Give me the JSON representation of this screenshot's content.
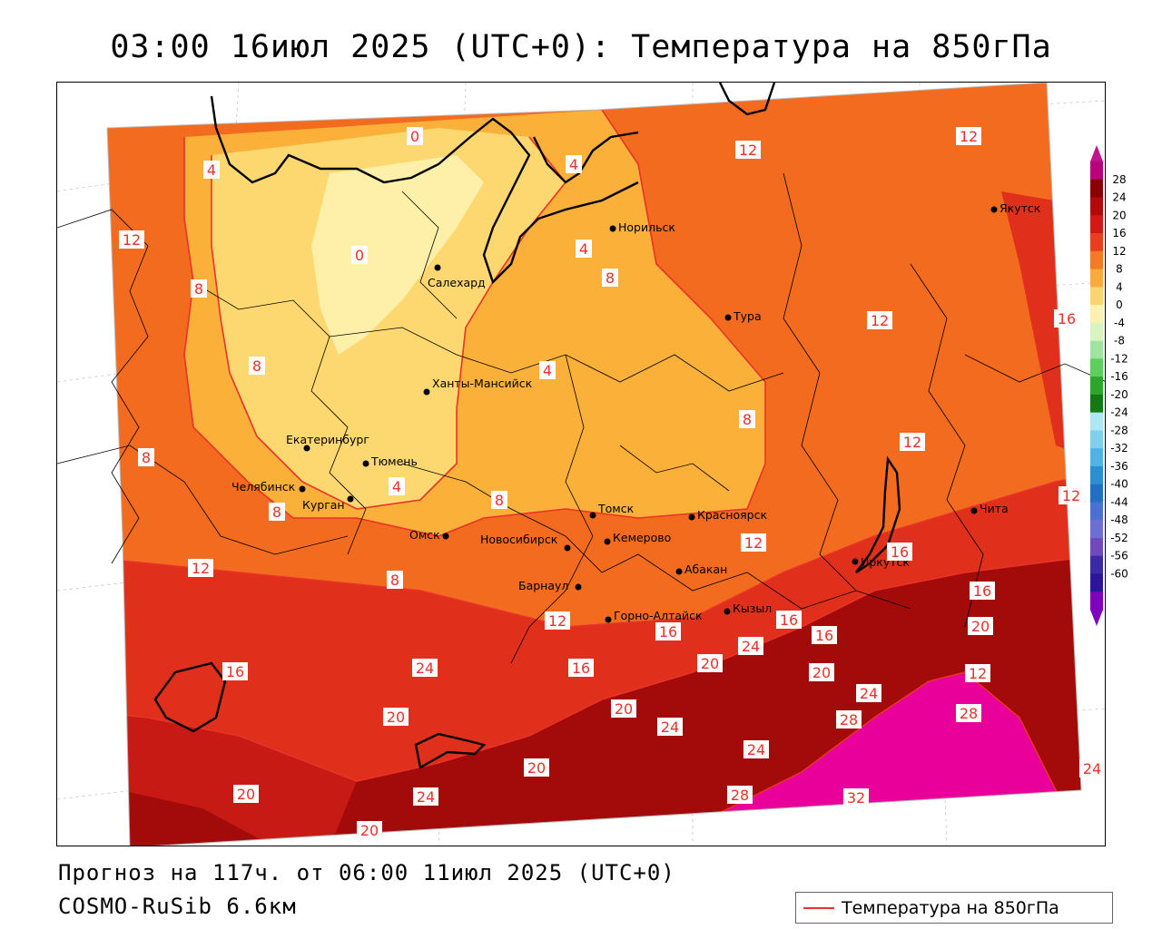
{
  "title": "03:00 16июл 2025 (UTC+0): Температура на 850гПа",
  "forecast_text": "Прогноз на 117ч. от 06:00 11июл 2025 (UTC+0)",
  "model_text": "COSMO-RuSib 6.6км",
  "series_legend": {
    "label": "Температура на 850гПа",
    "color": "#e8322a"
  },
  "colors": {
    "t28": "#e9009b",
    "t24": "#a30a0a",
    "t20": "#c81a14",
    "t16": "#e0301c",
    "t12": "#f26b1f",
    "t8": "#fbb03a",
    "t4": "#fdd870",
    "t0": "#fef0a8",
    "contour": "#e8322a"
  },
  "colorbar": {
    "ticks": [
      "28",
      "24",
      "20",
      "16",
      "12",
      "8",
      "4",
      "0",
      "-4",
      "-8",
      "-12",
      "-16",
      "-20",
      "-24",
      "-28",
      "-32",
      "-36",
      "-40",
      "-44",
      "-48",
      "-52",
      "-56",
      "-60"
    ],
    "colors": [
      "#b8007a",
      "#8c0000",
      "#b00a0a",
      "#d21a14",
      "#e8401c",
      "#f57a22",
      "#fba93a",
      "#fdd46e",
      "#fff2b0",
      "#d8f5c0",
      "#9fe5a0",
      "#5ccf5c",
      "#2aa82a",
      "#127a12",
      "#aee8f5",
      "#7fd0ef",
      "#4fb3e6",
      "#2b8fd8",
      "#2070c8",
      "#4a6fd6",
      "#6d6fd8",
      "#7048c0",
      "#3a2aa8",
      "#2a14a0",
      "#8000c0"
    ]
  },
  "contour_labels": [
    {
      "text": "0"
    },
    {
      "text": "4"
    },
    {
      "text": "12"
    },
    {
      "text": "8"
    },
    {
      "text": "12"
    },
    {
      "text": "4"
    },
    {
      "text": "12"
    },
    {
      "text": "0"
    },
    {
      "text": "4"
    },
    {
      "text": "8"
    },
    {
      "text": "8"
    },
    {
      "text": "12"
    },
    {
      "text": "16"
    },
    {
      "text": "4"
    },
    {
      "text": "8"
    },
    {
      "text": "8"
    },
    {
      "text": "12"
    },
    {
      "text": "4"
    },
    {
      "text": "8"
    },
    {
      "text": "8"
    },
    {
      "text": "12"
    },
    {
      "text": "12"
    },
    {
      "text": "8"
    },
    {
      "text": "12"
    },
    {
      "text": "16"
    },
    {
      "text": "16"
    },
    {
      "text": "12"
    },
    {
      "text": "12"
    },
    {
      "text": "16"
    },
    {
      "text": "20"
    },
    {
      "text": "16"
    },
    {
      "text": "24"
    },
    {
      "text": "16"
    },
    {
      "text": "16"
    },
    {
      "text": "20"
    },
    {
      "text": "16"
    },
    {
      "text": "24"
    },
    {
      "text": "20"
    },
    {
      "text": "20"
    },
    {
      "text": "20"
    },
    {
      "text": "24"
    },
    {
      "text": "24"
    },
    {
      "text": "28"
    },
    {
      "text": "28"
    },
    {
      "text": "24"
    },
    {
      "text": "20"
    },
    {
      "text": "24"
    },
    {
      "text": "28"
    },
    {
      "text": "20"
    },
    {
      "text": "32"
    },
    {
      "text": "24"
    },
    {
      "text": "20"
    }
  ],
  "cities": [
    {
      "name": "Норильск"
    },
    {
      "name": "Якутск"
    },
    {
      "name": "Салехард"
    },
    {
      "name": "Тура"
    },
    {
      "name": "Ханты-Мансийск"
    },
    {
      "name": "Екатеринбург"
    },
    {
      "name": "Тюмень"
    },
    {
      "name": "Челябинск"
    },
    {
      "name": "Курган"
    },
    {
      "name": "Омск"
    },
    {
      "name": "Новосибирск"
    },
    {
      "name": "Томск"
    },
    {
      "name": "Кемерово"
    },
    {
      "name": "Красноярск"
    },
    {
      "name": "Абакан"
    },
    {
      "name": "Барнаул"
    },
    {
      "name": "Горно-Алтайск"
    },
    {
      "name": "Кызыл"
    },
    {
      "name": "Иркутск"
    },
    {
      "name": "Чита"
    }
  ]
}
